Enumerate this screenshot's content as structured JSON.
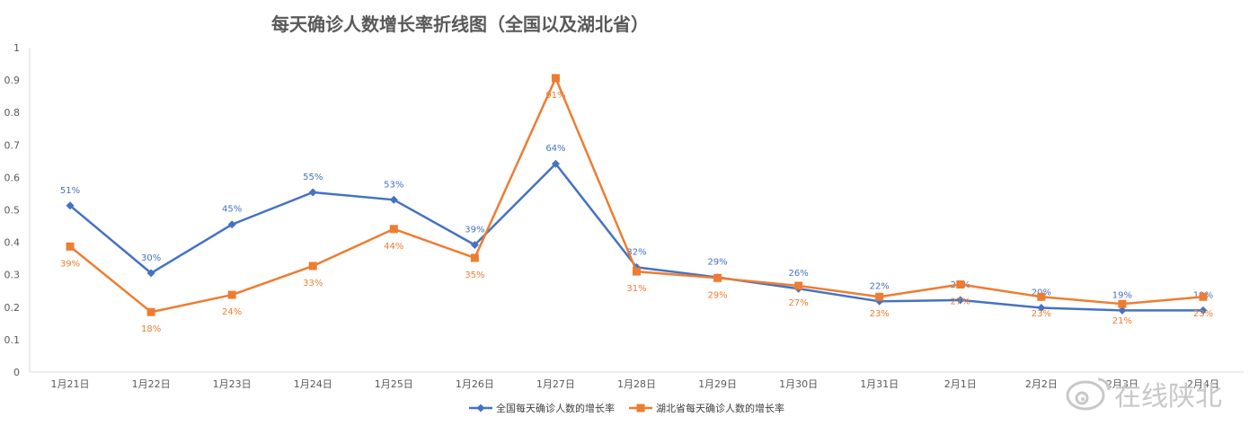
{
  "chart_data": {
    "type": "line",
    "title": "每天确诊人数增长率折线图（全国以及湖北省）",
    "categories": [
      "1月21日",
      "1月22日",
      "1月23日",
      "1月24日",
      "1月25日",
      "1月26日",
      "1月27日",
      "1月28日",
      "1月29日",
      "1月30日",
      "1月31日",
      "2月1日",
      "2月2日",
      "2月3日",
      "2月4日"
    ],
    "ylim": [
      0,
      1
    ],
    "yticks": [
      "0",
      "0.1",
      "0.2",
      "0.3",
      "0.4",
      "0.5",
      "0.6",
      "0.7",
      "0.8",
      "0.9",
      "1"
    ],
    "grid": false,
    "legend_position": "bottom",
    "series": [
      {
        "name": "全国每天确诊人数的增长率",
        "color": "#4472c4",
        "marker": "diamond",
        "values": [
          0.513,
          0.305,
          0.455,
          0.554,
          0.531,
          0.392,
          0.642,
          0.323,
          0.292,
          0.257,
          0.218,
          0.222,
          0.198,
          0.19,
          0.19
        ],
        "labels": [
          "51%",
          "30%",
          "45%",
          "55%",
          "53%",
          "39%",
          "64%",
          "32%",
          "29%",
          "26%",
          "22%",
          "22%",
          "20%",
          "19%",
          "19%"
        ]
      },
      {
        "name": "湖北省每天确诊人数的增长率",
        "color": "#ed7d31",
        "marker": "square",
        "values": [
          0.387,
          0.185,
          0.238,
          0.327,
          0.441,
          0.352,
          0.906,
          0.31,
          0.29,
          0.266,
          0.232,
          0.27,
          0.232,
          0.21,
          0.232
        ],
        "labels": [
          "39%",
          "18%",
          "24%",
          "33%",
          "44%",
          "35%",
          "91%",
          "31%",
          "29%",
          "27%",
          "23%",
          "27%",
          "23%",
          "21%",
          "23%"
        ]
      }
    ]
  },
  "watermark": {
    "text": "在线陕北"
  }
}
